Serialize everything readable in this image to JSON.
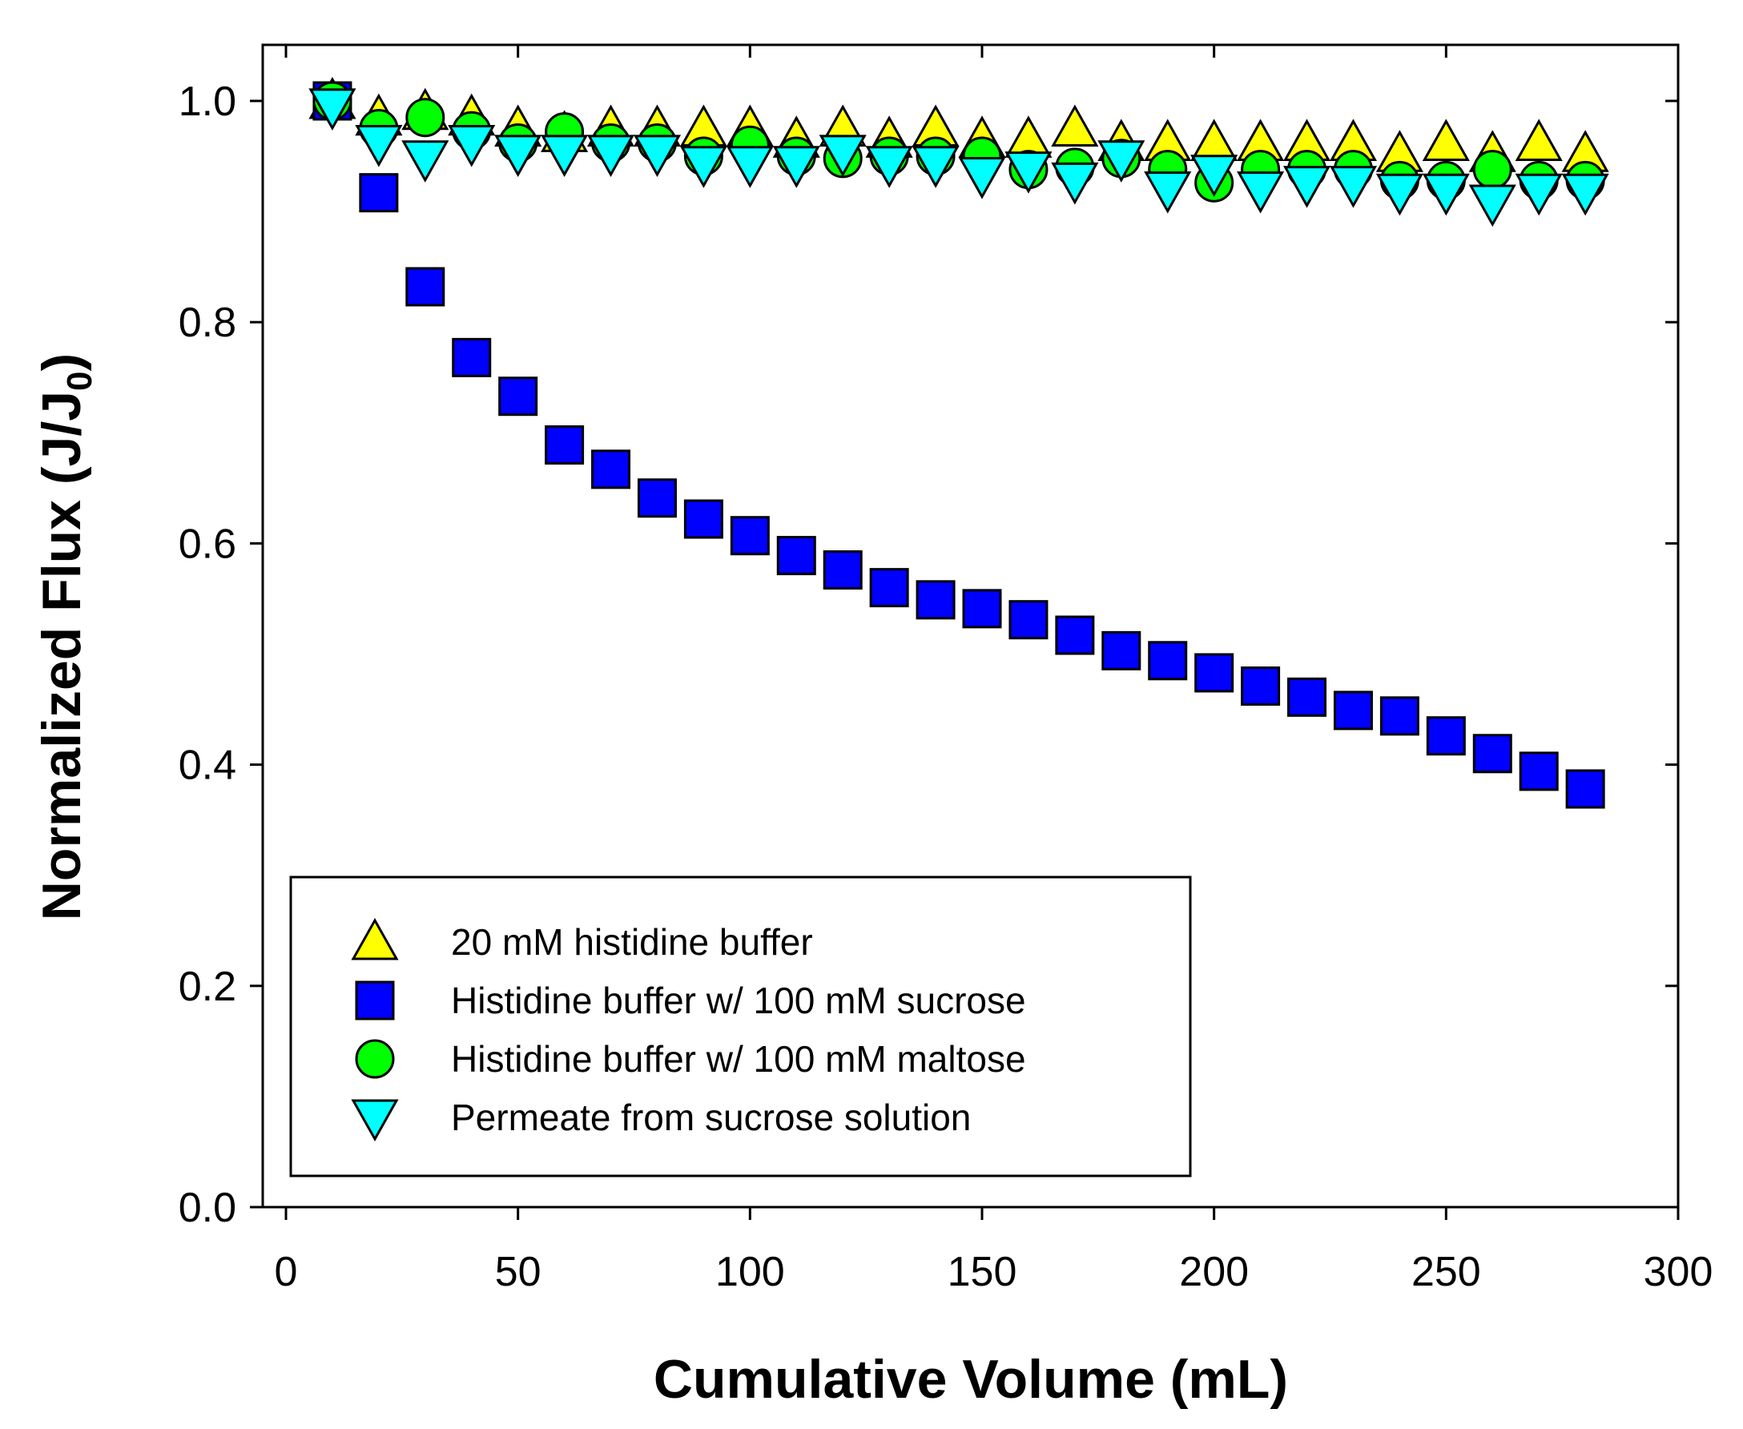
{
  "chart_data": {
    "type": "scatter",
    "title": "",
    "xlabel": "Cumulative Volume (mL)",
    "ylabel_main": "Normalized Flux (J/J",
    "ylabel_sub": "0",
    "ylabel_close": ")",
    "xlim": [
      -5,
      300
    ],
    "ylim": [
      0,
      1.05
    ],
    "xticks": [
      0,
      50,
      100,
      150,
      200,
      250,
      300
    ],
    "xtick_labels": [
      "0",
      "50",
      "100",
      "150",
      "200",
      "250",
      "300"
    ],
    "yticks": [
      0,
      0.2,
      0.4,
      0.6,
      0.8,
      1.0
    ],
    "ytick_labels": [
      "0.0",
      "0.2",
      "0.4",
      "0.6",
      "0.8",
      "1.0"
    ],
    "grid": false,
    "legend_position": "bottom-left",
    "x": [
      10,
      20,
      30,
      40,
      50,
      60,
      70,
      80,
      90,
      100,
      110,
      120,
      130,
      140,
      150,
      160,
      170,
      180,
      190,
      200,
      210,
      220,
      230,
      240,
      250,
      260,
      270,
      280
    ],
    "series": [
      {
        "name": "20 mM histidine buffer",
        "marker": "triangle-up",
        "color": "#ffff00",
        "values": [
          1.0,
          0.985,
          0.99,
          0.985,
          0.975,
          0.97,
          0.975,
          0.975,
          0.975,
          0.975,
          0.965,
          0.975,
          0.965,
          0.975,
          0.965,
          0.965,
          0.975,
          0.962,
          0.962,
          0.962,
          0.962,
          0.962,
          0.962,
          0.952,
          0.962,
          0.952,
          0.962,
          0.952
        ]
      },
      {
        "name": "Histidine buffer w/ 100 mM sucrose",
        "marker": "square",
        "color": "#0000ff",
        "values": [
          1.0,
          0.917,
          0.832,
          0.768,
          0.733,
          0.689,
          0.667,
          0.641,
          0.622,
          0.607,
          0.589,
          0.576,
          0.56,
          0.549,
          0.541,
          0.531,
          0.517,
          0.503,
          0.494,
          0.483,
          0.471,
          0.461,
          0.449,
          0.444,
          0.426,
          0.41,
          0.394,
          0.378
        ]
      },
      {
        "name": "Histidine buffer w/ 100 mM maltose",
        "marker": "circle",
        "color": "#00ff00",
        "values": [
          1.0,
          0.975,
          0.985,
          0.973,
          0.962,
          0.972,
          0.962,
          0.962,
          0.95,
          0.96,
          0.95,
          0.948,
          0.95,
          0.95,
          0.95,
          0.938,
          0.94,
          0.948,
          0.938,
          0.926,
          0.938,
          0.938,
          0.938,
          0.928,
          0.928,
          0.938,
          0.928,
          0.928
        ]
      },
      {
        "name": "Permeate from sucrose solution",
        "marker": "triangle-down",
        "color": "#00ffff",
        "values": [
          0.995,
          0.962,
          0.948,
          0.962,
          0.953,
          0.953,
          0.953,
          0.953,
          0.943,
          0.943,
          0.943,
          0.953,
          0.943,
          0.943,
          0.933,
          0.938,
          0.928,
          0.948,
          0.92,
          0.935,
          0.92,
          0.925,
          0.925,
          0.918,
          0.918,
          0.908,
          0.918,
          0.918
        ]
      }
    ]
  }
}
